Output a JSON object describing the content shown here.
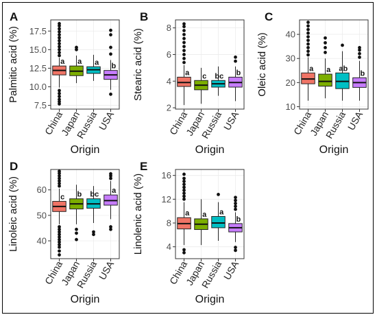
{
  "figure": {
    "categories": [
      "China",
      "Japan",
      "Russia",
      "USA"
    ],
    "colors": [
      "#F07466",
      "#7CAE00",
      "#00BFC4",
      "#C77CFF"
    ],
    "xlabel": "Origin"
  },
  "chart_data": [
    {
      "type": "box",
      "panel_label": "A",
      "ylabel": "Palmitic acid (%)",
      "xlabel": "Origin",
      "categories": [
        "China",
        "Japan",
        "Russia",
        "USA"
      ],
      "ylim": [
        7.0,
        19.0
      ],
      "yticks": [
        7.5,
        10.0,
        12.5,
        15.0,
        17.5
      ],
      "ytick_labels": [
        "7.5",
        "10.0",
        "12.5",
        "15.0",
        "17.5"
      ],
      "boxes": [
        {
          "q1": 11.6,
          "median": 12.2,
          "q3": 12.8,
          "whisker_low": 9.9,
          "whisker_high": 13.9,
          "outliers": [
            14.2,
            14.6,
            15.0,
            15.4,
            15.8,
            16.2,
            16.6,
            17.0,
            17.4,
            17.8,
            18.2,
            18.5,
            9.5,
            9.1,
            8.7,
            8.3,
            8.0,
            7.7
          ],
          "letter": "a"
        },
        {
          "q1": 11.5,
          "median": 12.1,
          "q3": 12.8,
          "whisker_low": 10.5,
          "whisker_high": 14.2,
          "outliers": [
            15.0,
            15.3
          ],
          "letter": "a"
        },
        {
          "q1": 11.8,
          "median": 12.3,
          "q3": 12.7,
          "whisker_low": 10.8,
          "whisker_high": 14.3,
          "outliers": [],
          "letter": "a"
        },
        {
          "q1": 11.0,
          "median": 11.6,
          "q3": 12.2,
          "whisker_low": 9.6,
          "whisker_high": 13.6,
          "outliers": [
            14.4,
            15.3,
            17.0,
            17.6,
            9.0
          ],
          "letter": "b"
        }
      ]
    },
    {
      "type": "box",
      "panel_label": "B",
      "ylabel": "Stearic acid (%)",
      "xlabel": "Origin",
      "categories": [
        "China",
        "Japan",
        "Russia",
        "USA"
      ],
      "ylim": [
        1.9,
        8.6
      ],
      "yticks": [
        2,
        4,
        6,
        8
      ],
      "ytick_labels": [
        "2",
        "4",
        "6",
        "8"
      ],
      "boxes": [
        {
          "q1": 3.6,
          "median": 3.9,
          "q3": 4.3,
          "whisker_low": 2.2,
          "whisker_high": 5.2,
          "outliers": [
            5.4,
            5.7,
            6.0,
            6.3,
            6.6,
            6.9,
            7.2,
            7.5,
            7.8,
            8.1,
            8.3
          ],
          "letter": "a"
        },
        {
          "q1": 3.35,
          "median": 3.7,
          "q3": 4.05,
          "whisker_low": 2.3,
          "whisker_high": 5.0,
          "outliers": [],
          "letter": "c"
        },
        {
          "q1": 3.55,
          "median": 3.8,
          "q3": 4.05,
          "whisker_low": 2.9,
          "whisker_high": 5.1,
          "outliers": [],
          "letter": "bc"
        },
        {
          "q1": 3.55,
          "median": 3.9,
          "q3": 4.3,
          "whisker_low": 2.5,
          "whisker_high": 5.1,
          "outliers": [
            5.5,
            5.8
          ],
          "letter": "b"
        }
      ]
    },
    {
      "type": "box",
      "panel_label": "C",
      "ylabel": "Oleic acid (%)",
      "xlabel": "Origin",
      "categories": [
        "China",
        "Japan",
        "Russia",
        "USA"
      ],
      "ylim": [
        9,
        46
      ],
      "yticks": [
        10,
        20,
        30,
        40
      ],
      "ytick_labels": [
        "10",
        "20",
        "30",
        "40"
      ],
      "boxes": [
        {
          "q1": 19.5,
          "median": 21.5,
          "q3": 24.0,
          "whisker_low": 12.5,
          "whisker_high": 30.5,
          "outliers": [
            31.5,
            33,
            34.5,
            36,
            37.5,
            39,
            40.5,
            42,
            43.5,
            45
          ],
          "letter": "a"
        },
        {
          "q1": 18.5,
          "median": 20.5,
          "q3": 23.5,
          "whisker_low": 13.5,
          "whisker_high": 30.0,
          "outliers": [
            32.5,
            34.5,
            36.5,
            38.5
          ],
          "letter": "a"
        },
        {
          "q1": 17.5,
          "median": 20.5,
          "q3": 24.0,
          "whisker_low": 12.5,
          "whisker_high": 33.0,
          "outliers": [
            35.5
          ],
          "letter": "ab"
        },
        {
          "q1": 18.0,
          "median": 20.0,
          "q3": 22.0,
          "whisker_low": 12.5,
          "whisker_high": 29.0,
          "outliers": [
            30.5,
            32.0,
            33.5,
            34.5
          ],
          "letter": "b"
        }
      ]
    },
    {
      "type": "box",
      "panel_label": "D",
      "ylabel": "Linoleic acid (%)",
      "xlabel": "Origin",
      "categories": [
        "China",
        "Japan",
        "Russia",
        "USA"
      ],
      "ylim": [
        33,
        68
      ],
      "yticks": [
        40,
        50,
        60
      ],
      "ytick_labels": [
        "40",
        "50",
        "60"
      ],
      "boxes": [
        {
          "q1": 51.5,
          "median": 53.5,
          "q3": 55.5,
          "whisker_low": 46.5,
          "whisker_high": 60.5,
          "outliers": [
            61.5,
            62.5,
            63.5,
            64.5,
            65.5,
            66.5,
            67.3,
            45.5,
            44.5,
            43.5,
            42.5,
            41.5,
            40.5,
            39.5,
            38.5,
            37.5,
            36.0,
            34.5
          ],
          "letter": "c"
        },
        {
          "q1": 52.5,
          "median": 54.5,
          "q3": 56.5,
          "whisker_low": 46.5,
          "whisker_high": 62.0,
          "outliers": [
            44.5,
            43.0,
            40.5
          ],
          "letter": "b"
        },
        {
          "q1": 52.8,
          "median": 54.5,
          "q3": 56.5,
          "whisker_low": 47.0,
          "whisker_high": 61.5,
          "outliers": [
            43.5,
            42.5
          ],
          "letter": "bc"
        },
        {
          "q1": 54.0,
          "median": 55.8,
          "q3": 58.0,
          "whisker_low": 48.5,
          "whisker_high": 63.5,
          "outliers": [
            64.5,
            65.5,
            66.3,
            45.5,
            44.5
          ],
          "letter": "a"
        }
      ]
    },
    {
      "type": "box",
      "panel_label": "E",
      "ylabel": "Linolenic acid (%)",
      "xlabel": "Origin",
      "categories": [
        "China",
        "Japan",
        "Russia",
        "USA"
      ],
      "ylim": [
        2,
        17
      ],
      "yticks": [
        4,
        8,
        12,
        16
      ],
      "ytick_labels": [
        "4",
        "8",
        "12",
        "16"
      ],
      "boxes": [
        {
          "q1": 7.0,
          "median": 7.9,
          "q3": 8.9,
          "whisker_low": 4.3,
          "whisker_high": 11.5,
          "outliers": [
            12.0,
            12.5,
            13.0,
            13.5,
            14.0,
            14.5,
            15.0,
            15.5,
            16.2,
            3.5,
            3.0
          ],
          "letter": "a"
        },
        {
          "q1": 6.9,
          "median": 7.8,
          "q3": 8.7,
          "whisker_low": 4.3,
          "whisker_high": 12.0,
          "outliers": [],
          "letter": "a"
        },
        {
          "q1": 7.2,
          "median": 8.0,
          "q3": 9.1,
          "whisker_low": 5.0,
          "whisker_high": 11.5,
          "outliers": [
            12.8
          ],
          "letter": "a"
        },
        {
          "q1": 6.5,
          "median": 7.2,
          "q3": 7.9,
          "whisker_low": 4.8,
          "whisker_high": 9.8,
          "outliers": [
            10.3,
            10.8,
            11.3,
            11.8,
            12.3,
            3.9,
            3.4
          ],
          "letter": "b"
        }
      ]
    }
  ]
}
